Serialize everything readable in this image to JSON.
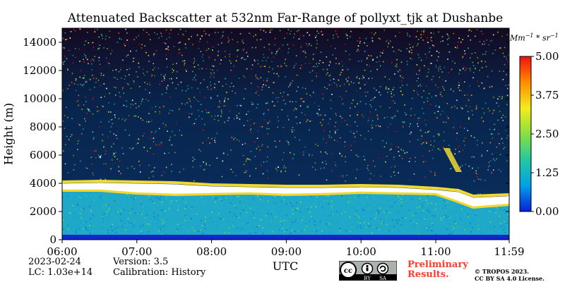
{
  "chart_data": {
    "type": "heatmap",
    "title": "Attenuated Backscatter at 532nm Far-Range of pollyxt_tjk at Dushanbe",
    "xlabel": "UTC",
    "ylabel": "Height (m)",
    "x_ticks": [
      "06:00",
      "07:00",
      "08:00",
      "09:00",
      "10:00",
      "11:00",
      "11:59"
    ],
    "x_tick_hours": [
      6.0,
      7.0,
      8.0,
      9.0,
      10.0,
      11.0,
      11.983
    ],
    "xlim": [
      6.0,
      11.983
    ],
    "y_ticks": [
      0,
      2000,
      4000,
      6000,
      8000,
      10000,
      12000,
      14000
    ],
    "ylim": [
      0,
      15000
    ],
    "colorbar": {
      "unit": "Mm",
      "unit_sup1": "−1",
      "unit_mid": " * sr",
      "unit_sup2": "−1",
      "ticks": [
        "0.00",
        "1.25",
        "2.50",
        "3.75",
        "5.00"
      ],
      "tick_values": [
        0.0,
        1.25,
        2.5,
        3.75,
        5.0
      ],
      "range": [
        0.0,
        5.0
      ],
      "colors": [
        "#0a1fd6",
        "#00a0e8",
        "#24c8a0",
        "#88e040",
        "#f4ec20",
        "#ff8c00",
        "#f01010"
      ]
    },
    "features": {
      "cloud_layer_top_height": [
        [
          6.0,
          4100
        ],
        [
          6.5,
          4150
        ],
        [
          7.0,
          4100
        ],
        [
          7.5,
          4050
        ],
        [
          8.0,
          3900
        ],
        [
          8.5,
          3850
        ],
        [
          9.0,
          3800
        ],
        [
          9.5,
          3800
        ],
        [
          10.0,
          3850
        ],
        [
          10.5,
          3800
        ],
        [
          11.0,
          3650
        ],
        [
          11.3,
          3500
        ],
        [
          11.5,
          3100
        ],
        [
          11.983,
          3200
        ]
      ],
      "cloud_layer_bottom_height": [
        [
          6.0,
          3500
        ],
        [
          6.5,
          3500
        ],
        [
          7.0,
          3300
        ],
        [
          7.5,
          3200
        ],
        [
          8.0,
          3250
        ],
        [
          8.5,
          3300
        ],
        [
          9.0,
          3200
        ],
        [
          9.5,
          3250
        ],
        [
          10.0,
          3350
        ],
        [
          10.5,
          3300
        ],
        [
          11.0,
          3250
        ],
        [
          11.3,
          2700
        ],
        [
          11.5,
          2300
        ],
        [
          11.983,
          2500
        ]
      ],
      "aerosol_layer_top_height": 3500,
      "surface_layer_top_height": 300,
      "elevated_plume": {
        "time_start": 11.1,
        "time_end": 11.35,
        "height_low": 4800,
        "height_high": 6500
      },
      "colors": {
        "noise_background": "#04183c",
        "aerosol_layer": "#1fa8c8",
        "cloud_core": "#ffffff",
        "cloud_edge": "#f0d830",
        "surface_layer": "#7ed23c"
      }
    }
  },
  "footer": {
    "date": "2023-02-24",
    "lc": "LC: 1.03e+14",
    "version": "Version: 3.5",
    "calibration": "Calibration: History",
    "preliminary_line1": "Preliminary",
    "preliminary_line2": "Results.",
    "copyright_line1": "© TROPOS 2023.",
    "copyright_line2": "CC BY SA 4.0 License.",
    "license_badge": {
      "icon": "cc-by-sa-badge-icon",
      "by_label": "BY",
      "sa_label": "SA",
      "cc_label": "cc"
    }
  }
}
